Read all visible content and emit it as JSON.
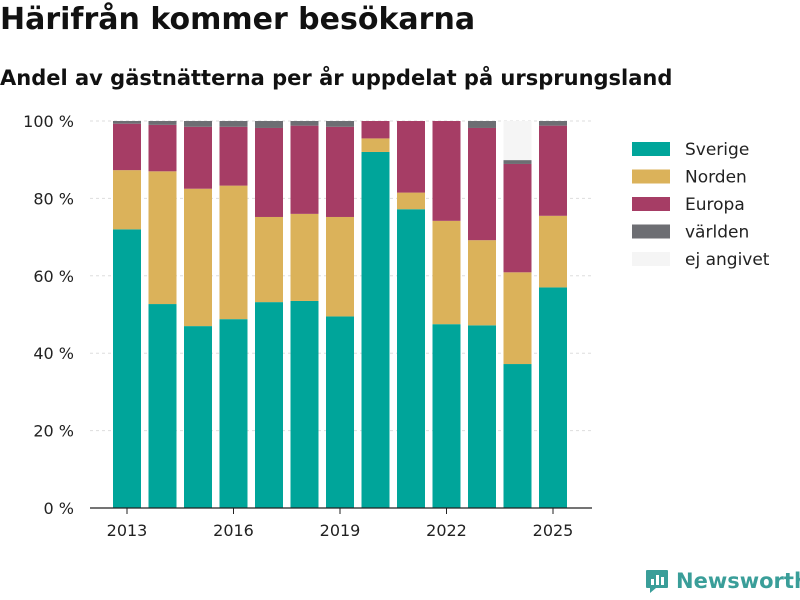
{
  "title": "Härifrån kommer besökarna",
  "subtitle": "Andel av gästnätterna per år uppdelat på ursprungsland",
  "brand": "Newsworthy",
  "chart_data": {
    "type": "bar",
    "stacked": true,
    "categories": [
      "2013",
      "2014",
      "2015",
      "2016",
      "2017",
      "2018",
      "2019",
      "2020",
      "2021",
      "2022",
      "2023",
      "2024",
      "2025"
    ],
    "x_tick_labels": [
      "2013",
      "2016",
      "2019",
      "2022",
      "2025"
    ],
    "y_tick_labels": [
      "0 %",
      "20 %",
      "40 %",
      "60 %",
      "80 %",
      "100 %"
    ],
    "ylim": [
      0,
      100
    ],
    "y_ticks": [
      0,
      20,
      40,
      60,
      80,
      100
    ],
    "grid": true,
    "legend_position": "right",
    "series": [
      {
        "name": "Sverige",
        "color": "#00a59a",
        "values": [
          72,
          52.7,
          47,
          48.8,
          53.2,
          53.5,
          49.5,
          92,
          77.2,
          47.5,
          47.2,
          37.2,
          57
        ]
      },
      {
        "name": "Norden",
        "color": "#dbb25a",
        "values": [
          15.3,
          34.3,
          35.5,
          34.5,
          22,
          22.5,
          25.7,
          3.5,
          4.3,
          26.7,
          22,
          23.7,
          18.5
        ]
      },
      {
        "name": "Europa",
        "color": "#a63d65",
        "values": [
          12,
          12,
          16,
          15.2,
          23,
          22.8,
          23.3,
          4.5,
          18.5,
          25.8,
          29,
          28,
          23.3
        ]
      },
      {
        "name": "världen",
        "color": "#6d6e73",
        "values": [
          0.7,
          1,
          1.5,
          1.5,
          1.8,
          1.2,
          1.5,
          0,
          0,
          0,
          1.8,
          1,
          1.2
        ]
      },
      {
        "name": "ej angivet",
        "color": "#f5f5f5",
        "values": [
          0,
          0,
          0,
          0,
          0,
          0,
          0,
          0,
          0,
          0,
          0,
          10.1,
          0
        ]
      }
    ]
  }
}
